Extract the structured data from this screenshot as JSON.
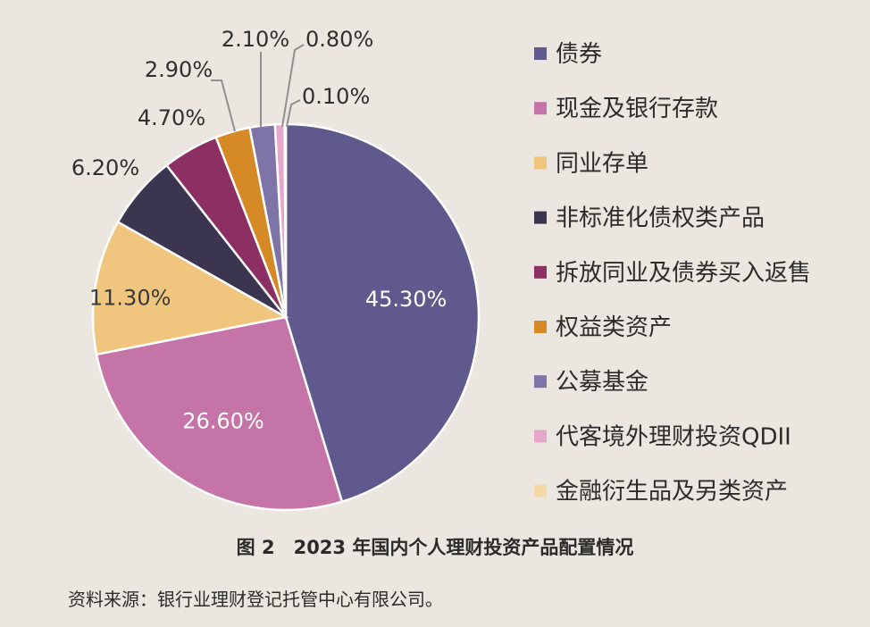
{
  "chart_data": {
    "type": "pie",
    "title": "",
    "legend_position": "right",
    "series": [
      {
        "name": "债券",
        "value": 45.3,
        "label": "45.30%",
        "color": "#5f598e"
      },
      {
        "name": "现金及银行存款",
        "value": 26.6,
        "label": "26.60%",
        "color": "#c474a6"
      },
      {
        "name": "同业存单",
        "value": 11.3,
        "label": "11.30%",
        "color": "#f0c67f"
      },
      {
        "name": "非标准化债权类产品",
        "value": 6.2,
        "label": "6.20%",
        "color": "#3b3550"
      },
      {
        "name": "拆放同业及债券买入返售",
        "value": 4.7,
        "label": "4.70%",
        "color": "#8c2f63"
      },
      {
        "name": "权益类资产",
        "value": 2.9,
        "label": "2.90%",
        "color": "#d68a26"
      },
      {
        "name": "公募基金",
        "value": 2.1,
        "label": "2.10%",
        "color": "#7f74a8"
      },
      {
        "name": "代客境外理财投资QDII",
        "value": 0.8,
        "label": "0.80%",
        "color": "#e6a7cc"
      },
      {
        "name": "金融衍生品及另类资产",
        "value": 0.1,
        "label": "0.10%",
        "color": "#f6d7a8"
      }
    ]
  },
  "caption": "图 2　2023 年国内个人理财投资产品配置情况",
  "source": "资料来源：银行业理财登记托管中心有限公司。"
}
